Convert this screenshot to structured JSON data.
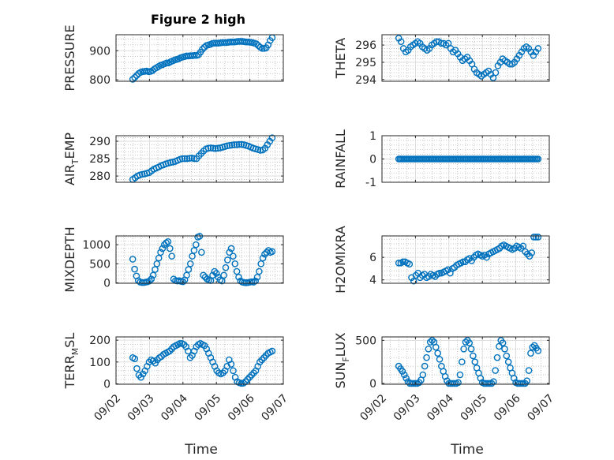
{
  "title": "Figure 2 high",
  "chart_data": [
    {
      "type": "scatter",
      "panel": "pressure",
      "title": "Figure 2 high",
      "ylabel": "PRESSURE",
      "xlabel": "",
      "ylim": [
        795,
        955
      ],
      "yticks": [
        800,
        900
      ],
      "x_start": "09/02 12:00",
      "x_end": "09/06 16:00",
      "y": [
        802,
        808,
        815,
        822,
        826,
        828,
        829,
        830,
        828,
        829,
        832,
        838,
        842,
        846,
        850,
        852,
        855,
        858,
        858,
        862,
        865,
        868,
        870,
        872,
        876,
        878,
        880,
        882,
        882,
        883,
        883,
        884,
        884,
        886,
        895,
        905,
        912,
        918,
        920,
        922,
        925,
        926,
        926,
        926,
        927,
        928,
        928,
        928,
        929,
        930,
        930,
        930,
        931,
        932,
        932,
        932,
        931,
        930,
        930,
        929,
        928,
        926,
        924,
        918,
        912,
        908,
        908,
        910,
        920,
        935,
        945
      ]
    },
    {
      "type": "scatter",
      "panel": "theta",
      "title": "",
      "ylabel": "THETA",
      "xlabel": "",
      "ylim": [
        293.9,
        296.6
      ],
      "yticks": [
        294,
        295,
        296
      ],
      "x_start": "09/02 12:00",
      "x_end": "09/06 16:00",
      "y": [
        296.4,
        296.2,
        295.8,
        295.6,
        295.7,
        295.9,
        296.0,
        296.1,
        296.2,
        296.1,
        295.9,
        295.8,
        295.7,
        295.8,
        296.0,
        296.1,
        296.2,
        296.2,
        296.1,
        296.1,
        296.0,
        296.1,
        295.8,
        295.6,
        295.7,
        295.5,
        295.3,
        295.1,
        295.2,
        295.3,
        295.1,
        294.9,
        294.6,
        294.4,
        294.3,
        294.2,
        294.3,
        294.4,
        294.5,
        294.3,
        294.1,
        294.4,
        294.8,
        295.0,
        295.2,
        295.1,
        295.0,
        294.9,
        294.9,
        295.0,
        295.2,
        295.4,
        295.6,
        295.8,
        295.9,
        295.8,
        295.6,
        295.4,
        295.6,
        295.8
      ]
    },
    {
      "type": "scatter",
      "panel": "air_temp",
      "title": "",
      "ylabel": "AIR_TEMP",
      "xlabel": "",
      "ylim": [
        278.2,
        291.6
      ],
      "yticks": [
        280,
        285,
        290
      ],
      "x_start": "09/02 12:00",
      "x_end": "09/06 16:00",
      "y": [
        279.0,
        279.5,
        280.0,
        280.3,
        280.5,
        280.6,
        280.8,
        281.0,
        281.5,
        282.0,
        282.3,
        282.6,
        283.0,
        283.2,
        283.5,
        283.7,
        283.9,
        284.0,
        284.2,
        284.5,
        284.8,
        285.0,
        285.0,
        285.0,
        285.1,
        285.2,
        285.0,
        285.0,
        285.8,
        286.5,
        287.2,
        287.8,
        288.0,
        288.1,
        288.0,
        287.9,
        288.0,
        288.1,
        288.3,
        288.5,
        288.7,
        288.8,
        288.9,
        289.0,
        289.0,
        289.1,
        289.1,
        289.0,
        288.8,
        288.6,
        288.3,
        288.0,
        287.8,
        287.6,
        287.4,
        287.5,
        288.0,
        289.0,
        290.0,
        291.0
      ]
    },
    {
      "type": "scatter",
      "panel": "rainfall",
      "title": "",
      "ylabel": "RAINFALL",
      "xlabel": "",
      "ylim": [
        -1,
        1
      ],
      "yticks": [
        -1,
        0,
        1
      ],
      "x_start": "09/02 12:00",
      "x_end": "09/06 16:00",
      "y": [
        0,
        0,
        0,
        0,
        0,
        0,
        0,
        0,
        0,
        0,
        0,
        0,
        0,
        0,
        0,
        0,
        0,
        0,
        0,
        0,
        0,
        0,
        0,
        0,
        0,
        0,
        0,
        0,
        0,
        0,
        0,
        0,
        0,
        0,
        0,
        0,
        0,
        0,
        0,
        0,
        0,
        0,
        0,
        0,
        0,
        0,
        0,
        0,
        0,
        0,
        0,
        0,
        0,
        0,
        0,
        0,
        0,
        0,
        0,
        0,
        0,
        0,
        0,
        0,
        0,
        0,
        0,
        0,
        0,
        0,
        0,
        0,
        0,
        0,
        0,
        0,
        0,
        0,
        0,
        0,
        0,
        0,
        0,
        0,
        0,
        0,
        0,
        0,
        0,
        0,
        0,
        0,
        0,
        0,
        0,
        0,
        0,
        0,
        0,
        0
      ]
    },
    {
      "type": "scatter",
      "panel": "mixdepth",
      "title": "",
      "ylabel": "MIXDEPTH",
      "xlabel": "",
      "ylim": [
        -10,
        1230
      ],
      "yticks": [
        0,
        500,
        1000
      ],
      "x_start": "09/02 12:00",
      "x_end": "09/06 16:00",
      "y": [
        620,
        360,
        180,
        60,
        20,
        10,
        10,
        20,
        30,
        50,
        100,
        200,
        350,
        500,
        650,
        800,
        900,
        1000,
        1050,
        1080,
        900,
        700,
        100,
        60,
        50,
        60,
        40,
        30,
        80,
        200,
        350,
        500,
        700,
        850,
        1000,
        1200,
        1220,
        800,
        200,
        150,
        100,
        80,
        60,
        200,
        300,
        250,
        150,
        80,
        50,
        200,
        400,
        600,
        800,
        900,
        700,
        500,
        300,
        150,
        50,
        20,
        10,
        5,
        10,
        20,
        30,
        20,
        50,
        150,
        300,
        500,
        650,
        750,
        800,
        850,
        800,
        820
      ]
    },
    {
      "type": "scatter",
      "panel": "h2omixra",
      "title": "",
      "ylabel": "H2OMIXRA",
      "xlabel": "",
      "ylim": [
        3.7,
        7.9
      ],
      "yticks": [
        4,
        6
      ],
      "x_start": "09/02 12:00",
      "x_end": "09/06 16:00",
      "y": [
        5.5,
        5.5,
        5.6,
        5.6,
        5.5,
        5.4,
        4.2,
        3.9,
        4.4,
        4.6,
        4.2,
        4.4,
        4.5,
        4.2,
        4.3,
        4.5,
        4.4,
        4.3,
        4.5,
        4.6,
        4.6,
        4.7,
        4.8,
        4.9,
        4.6,
        5.0,
        5.1,
        5.3,
        5.4,
        5.5,
        5.6,
        5.6,
        5.8,
        5.9,
        5.7,
        6.0,
        6.2,
        6.3,
        6.2,
        6.1,
        6.2,
        6.0,
        6.3,
        6.4,
        6.5,
        6.6,
        6.7,
        6.8,
        7.0,
        7.1,
        7.0,
        6.9,
        6.8,
        6.7,
        6.8,
        7.0,
        6.9,
        6.8,
        7.0,
        6.5,
        6.3,
        6.1,
        6.4,
        7.8,
        7.8,
        7.8
      ]
    },
    {
      "type": "scatter",
      "panel": "terr_msl",
      "title": "",
      "ylabel": "TERR_MSL",
      "xlabel": "Time",
      "ylim": [
        -2,
        215
      ],
      "yticks": [
        0,
        100,
        200
      ],
      "x_start": "09/02 12:00",
      "x_end": "09/06 16:00",
      "xticks": [
        "09/02",
        "09/03",
        "09/04",
        "09/05",
        "09/06",
        "09/07"
      ],
      "y": [
        120,
        115,
        70,
        40,
        30,
        45,
        60,
        80,
        100,
        110,
        105,
        95,
        110,
        120,
        125,
        135,
        140,
        145,
        150,
        160,
        170,
        175,
        180,
        185,
        185,
        180,
        170,
        150,
        120,
        130,
        150,
        170,
        180,
        185,
        180,
        175,
        160,
        140,
        120,
        100,
        80,
        60,
        50,
        45,
        50,
        60,
        80,
        110,
        90,
        60,
        30,
        10,
        5,
        2,
        3,
        10,
        20,
        30,
        40,
        50,
        60,
        80,
        100,
        110,
        120,
        130,
        140,
        145,
        150
      ]
    },
    {
      "type": "scatter",
      "panel": "sun_flux",
      "title": "",
      "ylabel": "SUN_FLUX",
      "xlabel": "Time",
      "ylim": [
        -10,
        540
      ],
      "yticks": [
        0,
        500
      ],
      "x_start": "09/02 12:00",
      "x_end": "09/06 16:00",
      "xticks": [
        "09/02",
        "09/03",
        "09/04",
        "09/05",
        "09/06",
        "09/07"
      ],
      "y": [
        200,
        170,
        140,
        100,
        60,
        20,
        0,
        0,
        0,
        0,
        0,
        10,
        40,
        100,
        200,
        300,
        400,
        480,
        500,
        480,
        420,
        350,
        280,
        200,
        140,
        80,
        30,
        0,
        0,
        0,
        0,
        0,
        10,
        100,
        250,
        400,
        480,
        500,
        470,
        400,
        320,
        250,
        180,
        120,
        60,
        10,
        0,
        0,
        0,
        0,
        0,
        20,
        150,
        300,
        430,
        500,
        470,
        400,
        320,
        250,
        180,
        120,
        60,
        10,
        0,
        0,
        0,
        0,
        0,
        30,
        150,
        350,
        420,
        440,
        410,
        380
      ]
    }
  ]
}
